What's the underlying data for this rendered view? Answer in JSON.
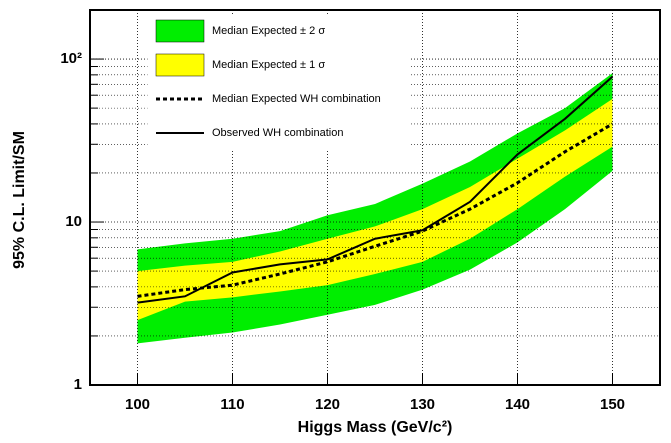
{
  "chart_data": {
    "type": "band-line",
    "log_y": true,
    "grid": true,
    "xlabel": "Higgs Mass (GeV/c²)",
    "ylabel": "95% C.L. Limit/SM",
    "x": [
      100,
      105,
      110,
      115,
      120,
      125,
      130,
      135,
      140,
      145,
      150
    ],
    "xlim": [
      95,
      155
    ],
    "xticks": [
      100,
      110,
      120,
      130,
      140,
      150
    ],
    "ylim": [
      1,
      200
    ],
    "yticks": [
      1,
      10,
      {
        "value": 100,
        "label": "10²"
      }
    ],
    "bands": [
      {
        "name": "Median Expected ± 2 σ",
        "color": "#00ee00",
        "lower": [
          1.8,
          1.95,
          2.1,
          2.35,
          2.7,
          3.1,
          3.85,
          5.1,
          7.5,
          12,
          20.6
        ],
        "upper": [
          6.8,
          7.4,
          7.9,
          8.8,
          11,
          12.9,
          17.2,
          23.5,
          35,
          50,
          82
        ]
      },
      {
        "name": "Median Expected ± 1 σ",
        "color": "#ffff00",
        "lower": [
          2.5,
          3.25,
          3.45,
          3.75,
          4.1,
          4.8,
          5.7,
          7.9,
          12,
          19,
          29
        ],
        "upper": [
          5,
          5.4,
          5.7,
          6.6,
          7.9,
          9.4,
          12,
          16.4,
          24.5,
          36.5,
          57
        ]
      }
    ],
    "series": [
      {
        "name": "Median Expected WH combination",
        "color": "#000000",
        "dash": true,
        "values": [
          3.5,
          3.85,
          4.1,
          4.8,
          5.7,
          7.1,
          8.8,
          12,
          17.4,
          27,
          40
        ]
      },
      {
        "name": "Observed WH combination",
        "color": "#000000",
        "dash": false,
        "values": [
          3.2,
          3.5,
          4.9,
          5.5,
          5.9,
          7.9,
          8.9,
          13.3,
          26,
          43,
          78
        ]
      }
    ]
  }
}
